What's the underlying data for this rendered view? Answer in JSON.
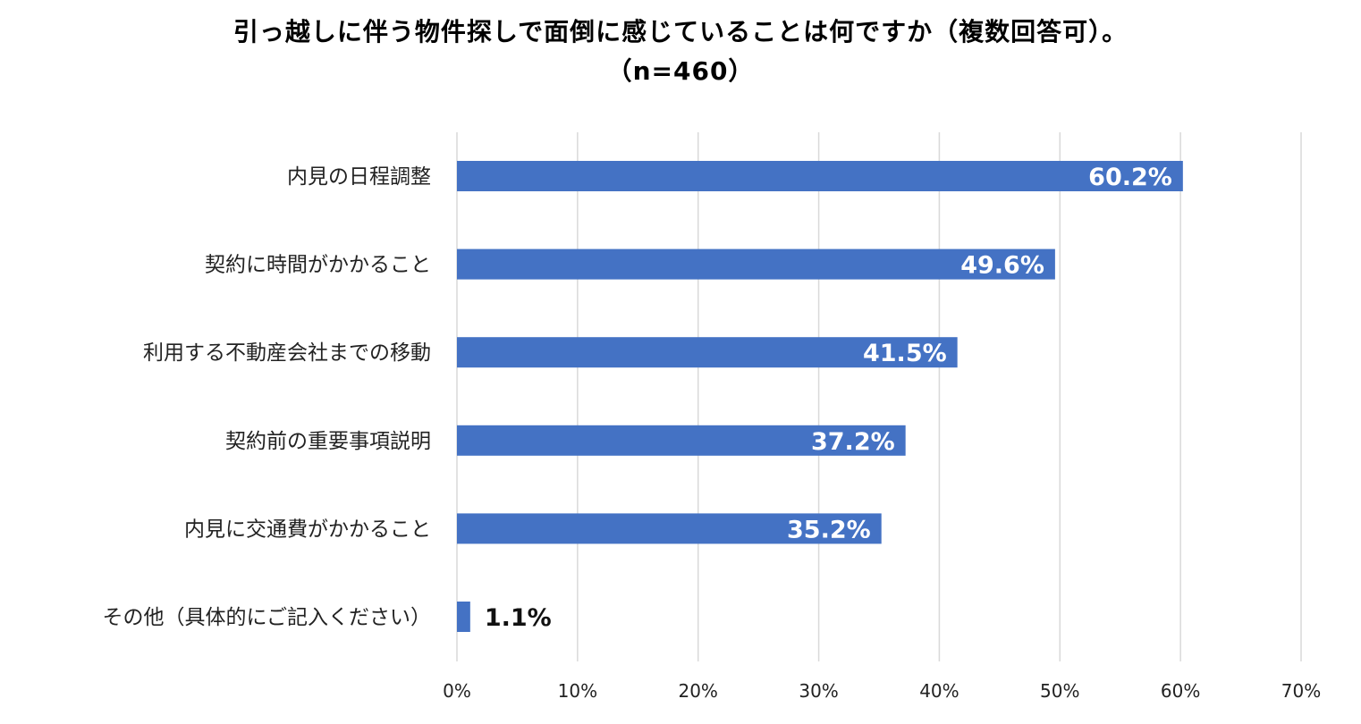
{
  "chart_data": {
    "type": "bar",
    "orientation": "horizontal",
    "title": "引っ越しに伴う物件探しで面倒に感じていることは何ですか（複数回答可）。",
    "subtitle": "（n=460）",
    "categories": [
      "内見の日程調整",
      "契約に時間がかかること",
      "利用する不動産会社までの移動",
      "契約前の重要事項説明",
      "内見に交通費がかかること",
      "その他（具体的にご記入ください）"
    ],
    "values": [
      60.2,
      49.6,
      41.5,
      37.2,
      35.2,
      1.1
    ],
    "value_labels": [
      "60.2%",
      "49.6%",
      "41.5%",
      "37.2%",
      "35.2%",
      "1.1%"
    ],
    "xlim": [
      0,
      70
    ],
    "x_ticks": [
      "0%",
      "10%",
      "20%",
      "30%",
      "40%",
      "50%",
      "60%",
      "70%"
    ],
    "xlabel": "",
    "ylabel": "",
    "grid": "vertical",
    "legend": "none",
    "bar_color": "#4472C4",
    "grid_color": "#D9D9D9"
  }
}
